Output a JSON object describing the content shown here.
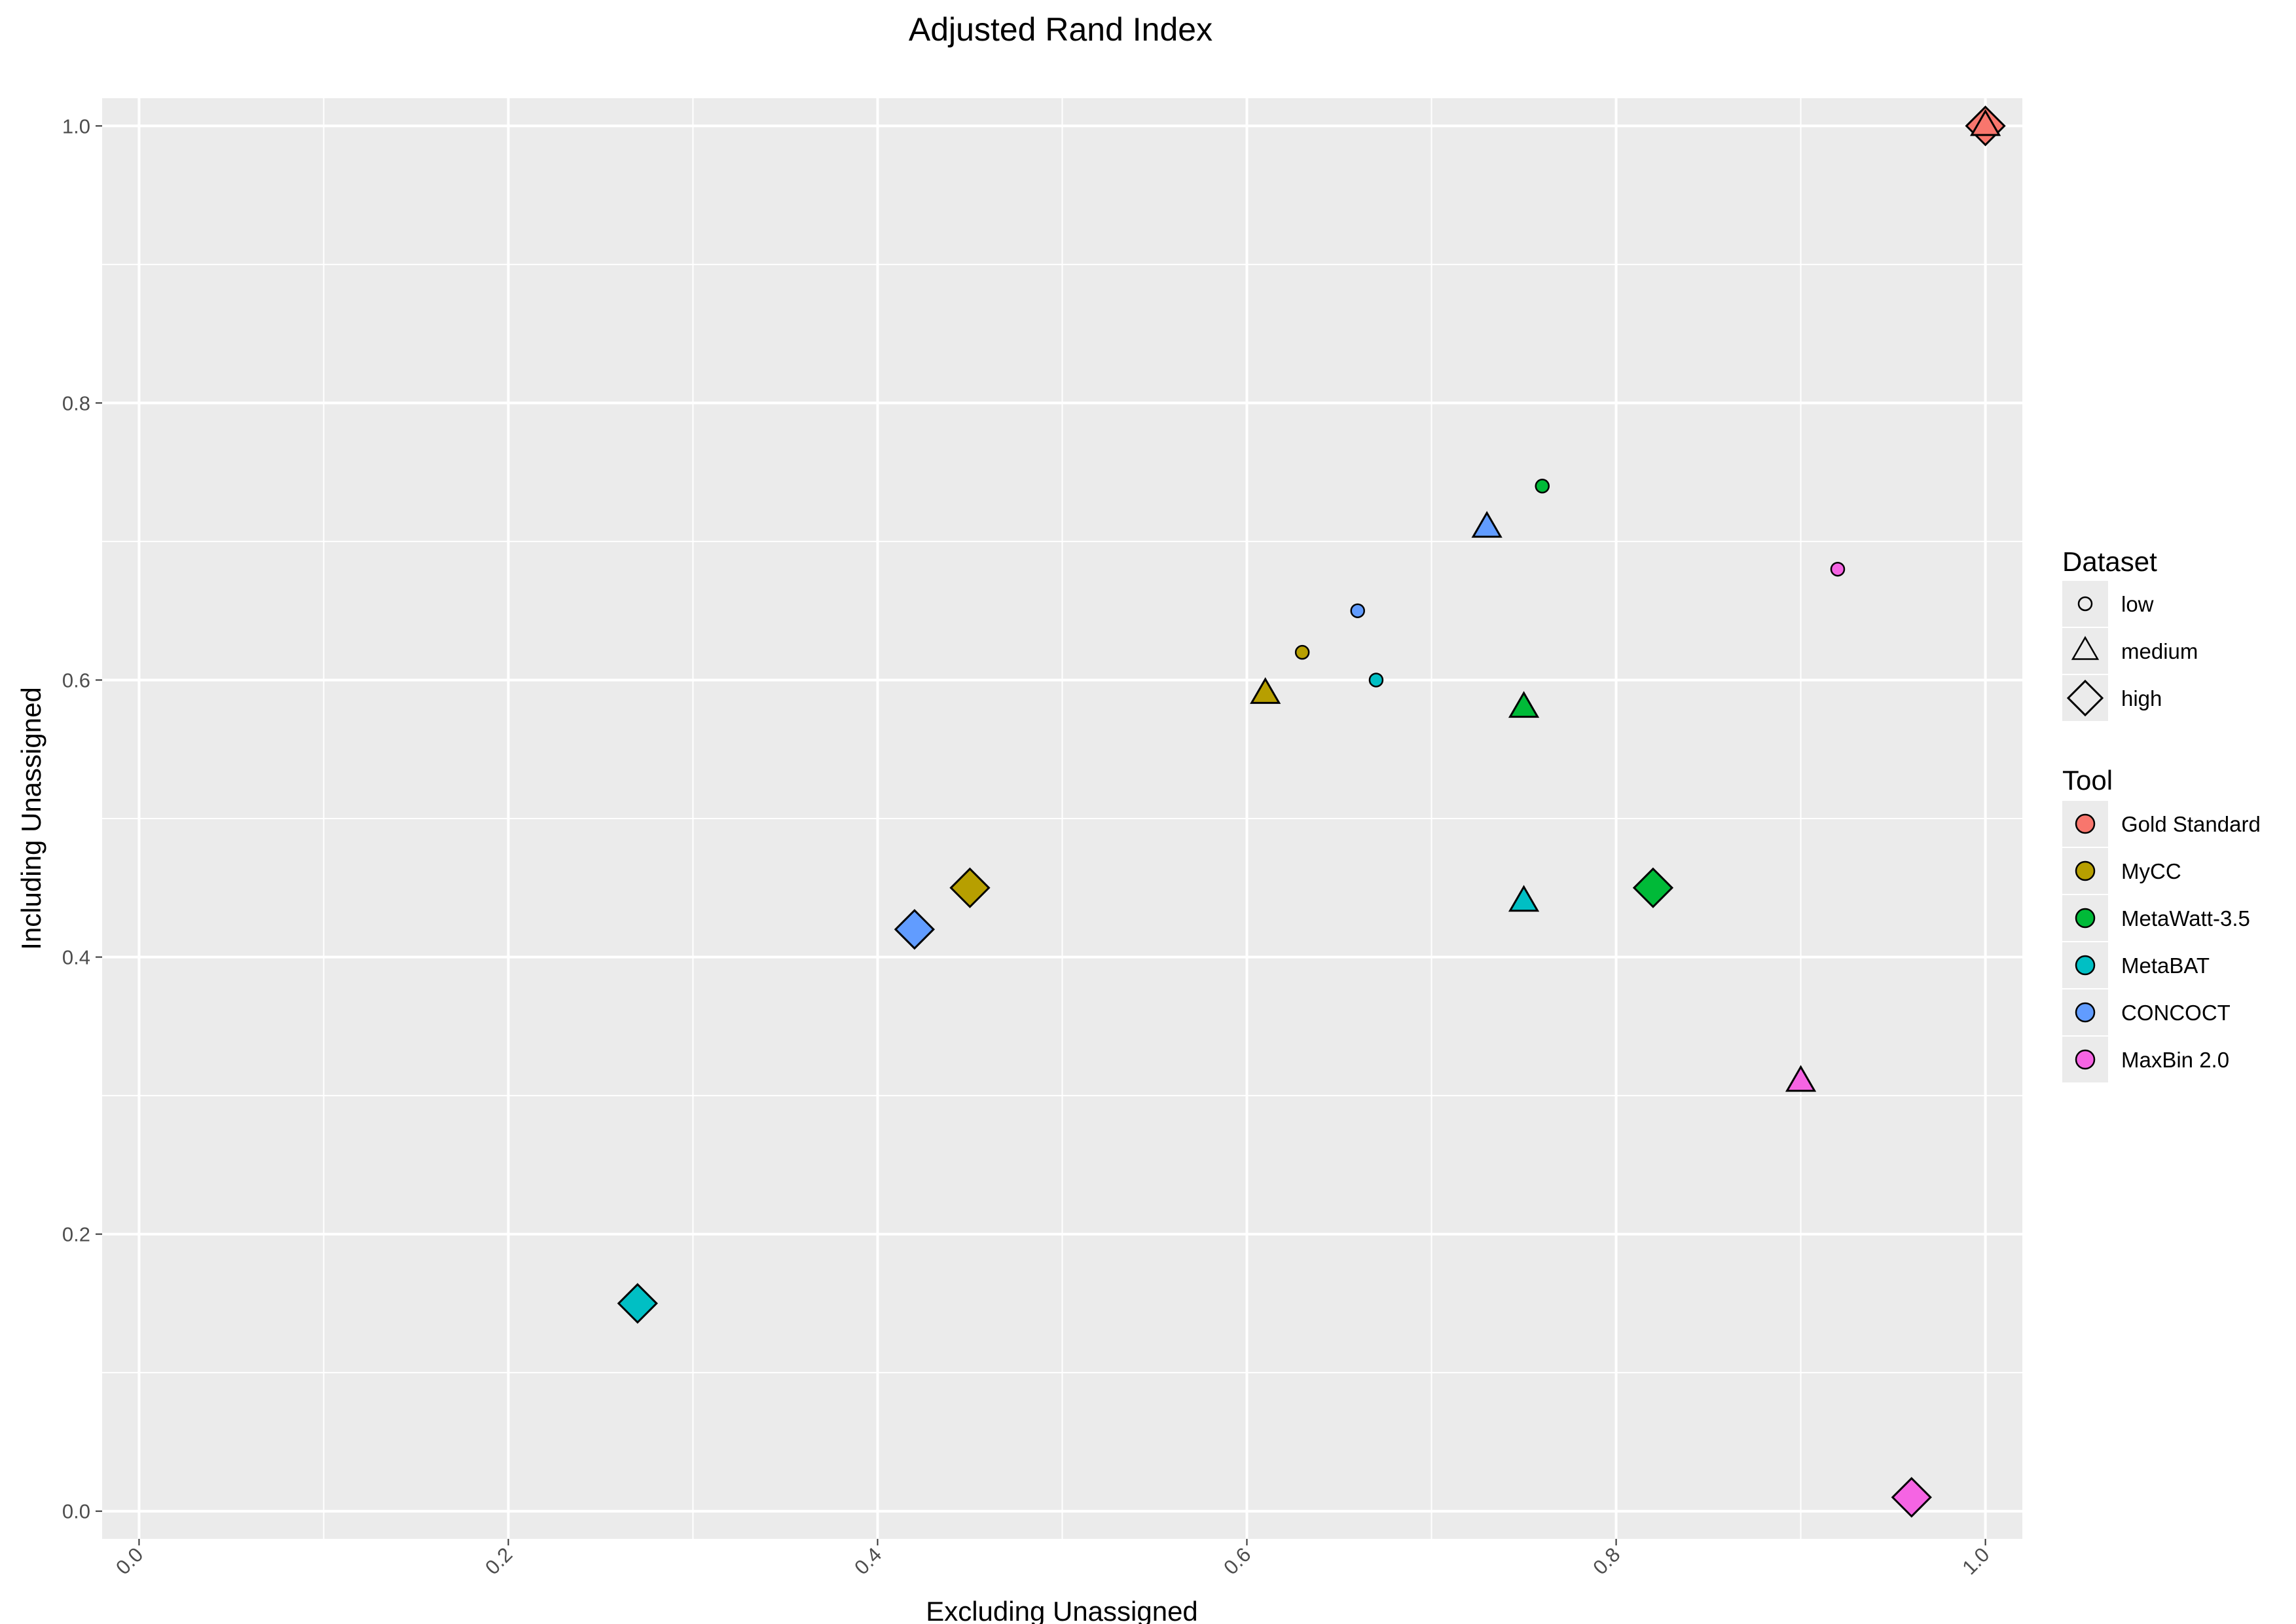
{
  "chart_data": {
    "type": "scatter",
    "title": "Adjusted Rand Index",
    "xlabel": "Excluding Unassigned",
    "ylabel": "Including Unassigned",
    "xlim": [
      -0.02,
      1.02
    ],
    "ylim": [
      -0.02,
      1.02
    ],
    "x_ticks": [
      "0.0",
      "0.2",
      "0.4",
      "0.6",
      "0.8",
      "1.0"
    ],
    "y_ticks": [
      "0.0",
      "0.2",
      "0.4",
      "0.6",
      "0.8",
      "1.0"
    ],
    "grid": true,
    "legend_position": "right",
    "shape_legend": {
      "title": "Dataset",
      "items": [
        {
          "label": "low",
          "shape": "circle"
        },
        {
          "label": "medium",
          "shape": "triangle"
        },
        {
          "label": "high",
          "shape": "diamond"
        }
      ]
    },
    "color_legend": {
      "title": "Tool",
      "items": [
        {
          "label": "Gold Standard",
          "color": "#F8766D"
        },
        {
          "label": "MyCC",
          "color": "#B79F00"
        },
        {
          "label": "MetaWatt-3.5",
          "color": "#00BA38"
        },
        {
          "label": "MetaBAT",
          "color": "#00BFC4"
        },
        {
          "label": "CONCOCT",
          "color": "#619CFF"
        },
        {
          "label": "MaxBin 2.0",
          "color": "#F564E3"
        }
      ]
    },
    "points": [
      {
        "tool": "Gold Standard",
        "dataset": "high",
        "x": 1.0,
        "y": 1.0
      },
      {
        "tool": "Gold Standard",
        "dataset": "medium",
        "x": 1.0,
        "y": 1.0
      },
      {
        "tool": "MyCC",
        "dataset": "low",
        "x": 0.63,
        "y": 0.62
      },
      {
        "tool": "MyCC",
        "dataset": "medium",
        "x": 0.61,
        "y": 0.59
      },
      {
        "tool": "MyCC",
        "dataset": "high",
        "x": 0.45,
        "y": 0.45
      },
      {
        "tool": "MetaWatt-3.5",
        "dataset": "low",
        "x": 0.76,
        "y": 0.74
      },
      {
        "tool": "MetaWatt-3.5",
        "dataset": "medium",
        "x": 0.75,
        "y": 0.58
      },
      {
        "tool": "MetaWatt-3.5",
        "dataset": "high",
        "x": 0.82,
        "y": 0.45
      },
      {
        "tool": "MetaBAT",
        "dataset": "low",
        "x": 0.67,
        "y": 0.6
      },
      {
        "tool": "MetaBAT",
        "dataset": "medium",
        "x": 0.75,
        "y": 0.44
      },
      {
        "tool": "MetaBAT",
        "dataset": "high",
        "x": 0.27,
        "y": 0.15
      },
      {
        "tool": "CONCOCT",
        "dataset": "low",
        "x": 0.66,
        "y": 0.65
      },
      {
        "tool": "CONCOCT",
        "dataset": "medium",
        "x": 0.73,
        "y": 0.71
      },
      {
        "tool": "CONCOCT",
        "dataset": "high",
        "x": 0.42,
        "y": 0.42
      },
      {
        "tool": "MaxBin 2.0",
        "dataset": "low",
        "x": 0.92,
        "y": 0.68
      },
      {
        "tool": "MaxBin 2.0",
        "dataset": "medium",
        "x": 0.9,
        "y": 0.31
      },
      {
        "tool": "MaxBin 2.0",
        "dataset": "high",
        "x": 0.96,
        "y": 0.01
      }
    ]
  }
}
